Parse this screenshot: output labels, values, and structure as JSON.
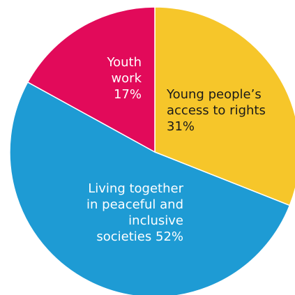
{
  "chart_data": {
    "type": "pie",
    "start_angle_deg": 0,
    "direction": "clockwise",
    "slices": [
      {
        "label_lines": [
          "Young people’s",
          "access to rights",
          "31%"
        ],
        "value": 31,
        "color": "#f6c62a",
        "text_color": "#1a1a1a"
      },
      {
        "label_lines": [
          "Living together",
          "in peaceful and",
          "inclusive",
          "societies 52%"
        ],
        "value": 52,
        "color": "#1e9bd4",
        "text_color": "#ffffff"
      },
      {
        "label_lines": [
          "Youth",
          "work",
          "17%"
        ],
        "value": 17,
        "color": "#e20a5a",
        "text_color": "#ffffff"
      }
    ]
  }
}
